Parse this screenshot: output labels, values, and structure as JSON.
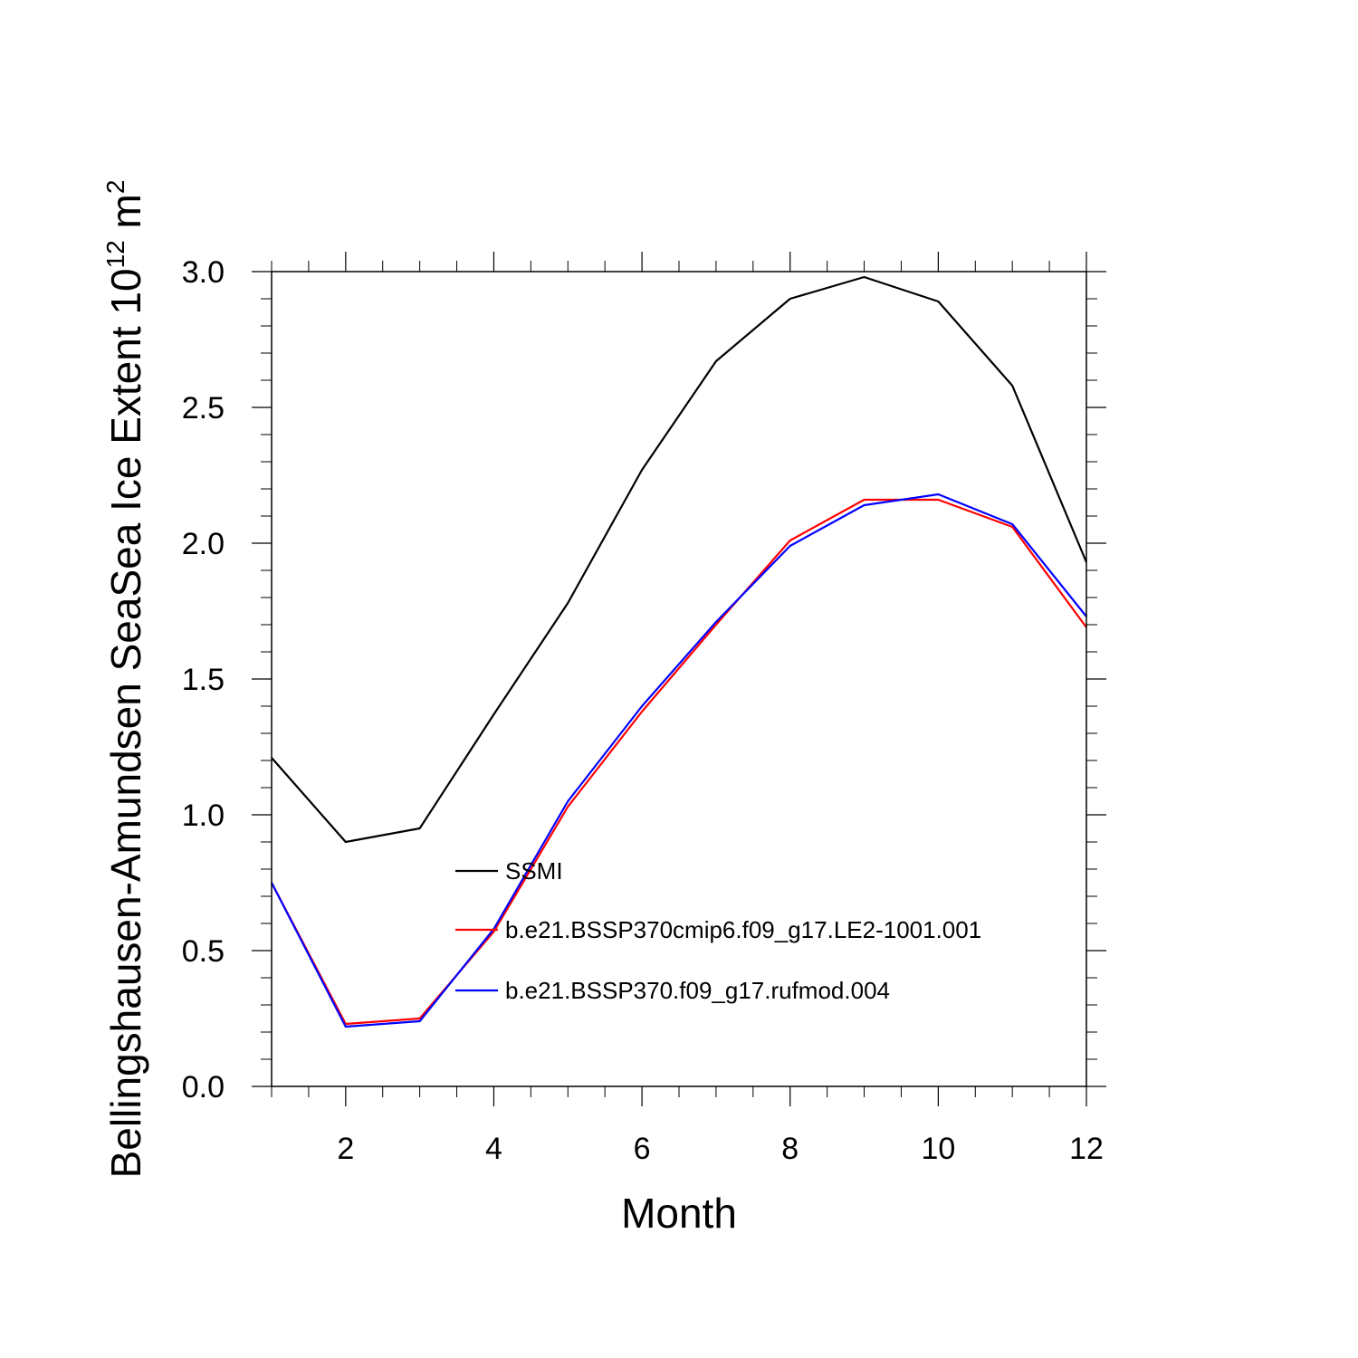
{
  "chart_data": {
    "type": "line",
    "title": "",
    "xlabel": "Month",
    "ylabel_main": "Bellingshausen-Amundsen SeaSea Ice Extent 10",
    "ylabel_exponent": "12",
    "ylabel_unit": " m",
    "ylabel_unit_exponent": "2",
    "xlim": [
      1,
      12
    ],
    "ylim": [
      0.0,
      3.0
    ],
    "xticks": [
      2,
      4,
      6,
      8,
      10,
      12
    ],
    "xtick_labels": [
      "2",
      "4",
      "6",
      "8",
      "10",
      "12"
    ],
    "yticks": [
      0.0,
      0.5,
      1.0,
      1.5,
      2.0,
      2.5,
      3.0
    ],
    "ytick_labels": [
      "0.0",
      "0.5",
      "1.0",
      "1.5",
      "2.0",
      "2.5",
      "3.0"
    ],
    "x": [
      1,
      2,
      3,
      4,
      5,
      6,
      7,
      8,
      9,
      10,
      11,
      12
    ],
    "grid": false,
    "legend_position": "center-bottom inside",
    "series": [
      {
        "name": "SSMI",
        "color": "#000000",
        "values": [
          1.21,
          0.9,
          0.95,
          1.37,
          1.78,
          2.27,
          2.67,
          2.9,
          2.98,
          2.89,
          2.58,
          1.93
        ]
      },
      {
        "name": "b.e21.BSSP370cmip6.f09_g17.LE2-1001.001",
        "color": "#ff0000",
        "values": [
          0.75,
          0.23,
          0.25,
          0.57,
          1.03,
          1.38,
          1.7,
          2.01,
          2.16,
          2.16,
          2.06,
          1.69
        ]
      },
      {
        "name": "b.e21.BSSP370.f09_g17.rufmod.004",
        "color": "#0000ff",
        "values": [
          0.75,
          0.22,
          0.24,
          0.58,
          1.05,
          1.4,
          1.71,
          1.99,
          2.14,
          2.18,
          2.07,
          1.73
        ]
      }
    ]
  }
}
